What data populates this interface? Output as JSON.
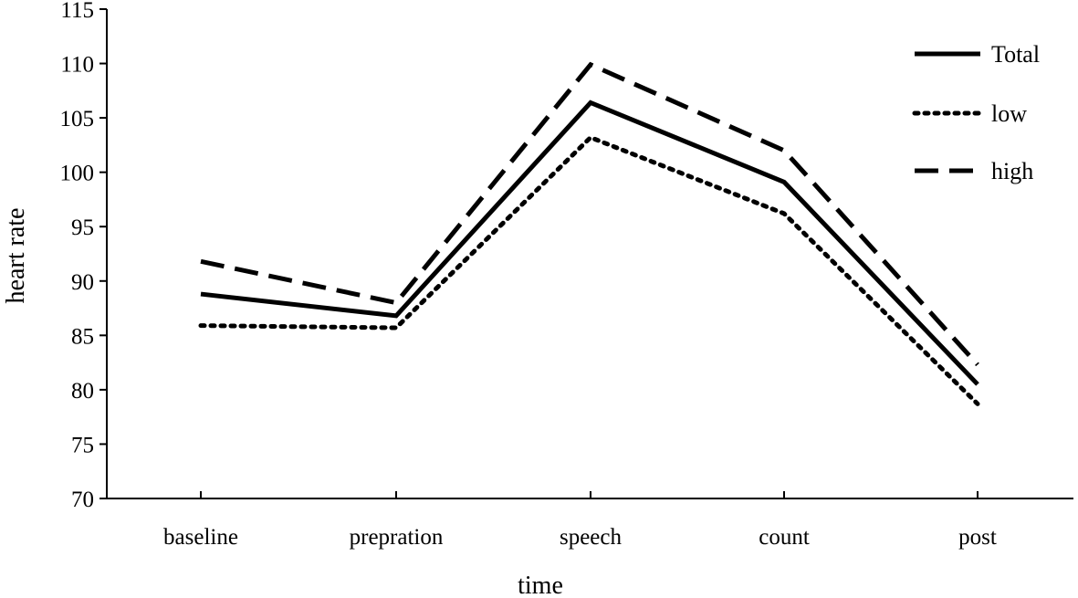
{
  "chart_data": {
    "type": "line",
    "title": "",
    "xlabel": "time",
    "ylabel": "heart rate",
    "categories": [
      "baseline",
      "prepration",
      "speech",
      "count",
      "post"
    ],
    "ylim": [
      70,
      115
    ],
    "yticks": [
      70,
      75,
      80,
      85,
      90,
      95,
      100,
      105,
      110,
      115
    ],
    "grid": false,
    "legend_position": "top-right",
    "series": [
      {
        "name": "Total",
        "style": "solid",
        "color": "#000000",
        "values": [
          88.8,
          86.8,
          106.4,
          99.1,
          80.5
        ]
      },
      {
        "name": "low",
        "style": "dotted",
        "color": "#000000",
        "values": [
          85.9,
          85.7,
          103.2,
          96.2,
          78.7
        ]
      },
      {
        "name": "high",
        "style": "dashed",
        "color": "#000000",
        "values": [
          91.8,
          88.0,
          109.9,
          102.0,
          82.3
        ]
      }
    ]
  }
}
